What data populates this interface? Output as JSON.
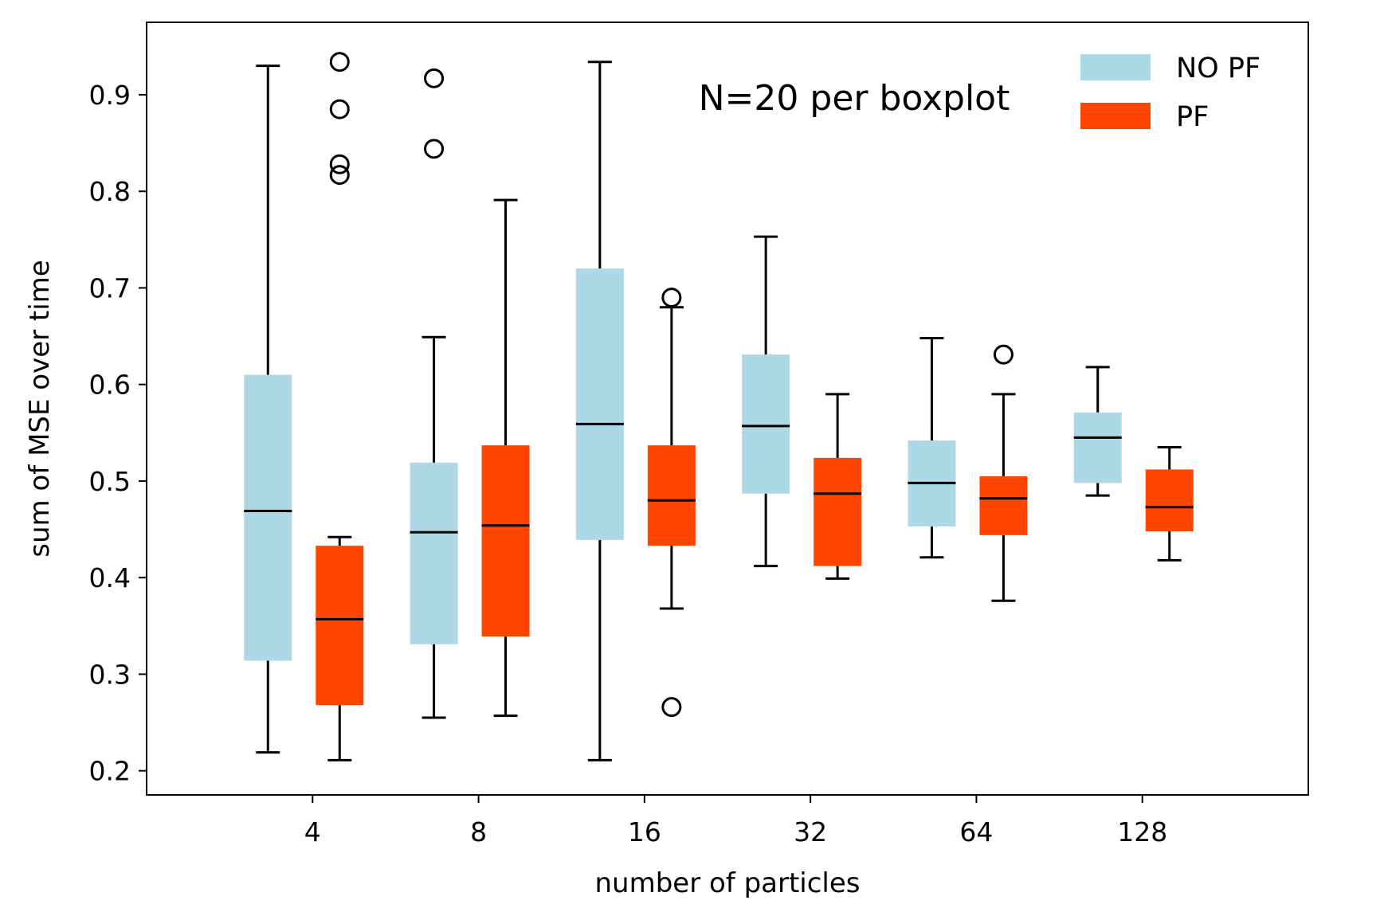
{
  "chart_data": {
    "type": "boxplot",
    "xlabel": "number of particles",
    "ylabel": "sum of MSE over time",
    "annotation": "N=20 per boxplot",
    "categories": [
      "4",
      "8",
      "16",
      "32",
      "64",
      "128"
    ],
    "ylim": [
      0.175,
      0.975
    ],
    "yticks": [
      "0.2",
      "0.3",
      "0.4",
      "0.5",
      "0.6",
      "0.7",
      "0.8",
      "0.9"
    ],
    "legend_position": "top-right",
    "colors": {
      "no_pf": "#add8e6",
      "pf": "#ff4500",
      "median": "#000000"
    },
    "series": [
      {
        "name": "NO PF",
        "boxes": [
          {
            "whislo": 0.219,
            "q1": 0.314,
            "med": 0.469,
            "q3": 0.61,
            "whishi": 0.93,
            "fliers": []
          },
          {
            "whislo": 0.255,
            "q1": 0.331,
            "med": 0.447,
            "q3": 0.519,
            "whishi": 0.649,
            "fliers": [
              0.917,
              0.844
            ]
          },
          {
            "whislo": 0.211,
            "q1": 0.439,
            "med": 0.559,
            "q3": 0.72,
            "whishi": 0.934,
            "fliers": []
          },
          {
            "whislo": 0.412,
            "q1": 0.487,
            "med": 0.557,
            "q3": 0.631,
            "whishi": 0.753,
            "fliers": []
          },
          {
            "whislo": 0.421,
            "q1": 0.453,
            "med": 0.498,
            "q3": 0.542,
            "whishi": 0.648,
            "fliers": []
          },
          {
            "whislo": 0.485,
            "q1": 0.498,
            "med": 0.545,
            "q3": 0.571,
            "whishi": 0.618,
            "fliers": []
          }
        ]
      },
      {
        "name": "PF",
        "boxes": [
          {
            "whislo": 0.211,
            "q1": 0.268,
            "med": 0.357,
            "q3": 0.433,
            "whishi": 0.442,
            "fliers": [
              0.934,
              0.885,
              0.828,
              0.817
            ]
          },
          {
            "whislo": 0.257,
            "q1": 0.339,
            "med": 0.454,
            "q3": 0.537,
            "whishi": 0.791,
            "fliers": []
          },
          {
            "whislo": 0.368,
            "q1": 0.433,
            "med": 0.48,
            "q3": 0.537,
            "whishi": 0.68,
            "fliers": [
              0.69,
              0.266
            ]
          },
          {
            "whislo": 0.399,
            "q1": 0.412,
            "med": 0.487,
            "q3": 0.524,
            "whishi": 0.59,
            "fliers": []
          },
          {
            "whislo": 0.376,
            "q1": 0.444,
            "med": 0.482,
            "q3": 0.505,
            "whishi": 0.59,
            "fliers": [
              0.631
            ]
          },
          {
            "whislo": 0.418,
            "q1": 0.448,
            "med": 0.473,
            "q3": 0.512,
            "whishi": 0.535,
            "fliers": []
          }
        ]
      }
    ]
  }
}
